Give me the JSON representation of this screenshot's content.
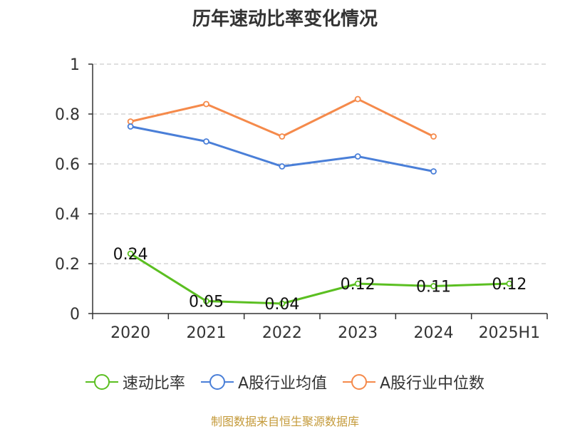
{
  "chart_data": {
    "type": "line",
    "title": "历年速动比率变化情况",
    "categories": [
      "2020",
      "2021",
      "2022",
      "2023",
      "2024",
      "2025H1"
    ],
    "ylim": [
      0,
      1
    ],
    "yticks": [
      0,
      0.2,
      0.4,
      0.6,
      0.8,
      1
    ],
    "ytick_labels": [
      "0",
      "0.2",
      "0.4",
      "0.6",
      "0.8",
      "1"
    ],
    "grid": true,
    "legend_position": "bottom",
    "series": [
      {
        "name": "速动比率",
        "color": "#5bbf21",
        "values": [
          0.24,
          0.05,
          0.04,
          0.12,
          0.11,
          0.12
        ],
        "labels": [
          "0.24",
          "0.05",
          "0.04",
          "0.12",
          "0.11",
          "0.12"
        ]
      },
      {
        "name": "A股行业均值",
        "color": "#4a7fd8",
        "values": [
          0.75,
          0.69,
          0.59,
          0.63,
          0.57,
          null
        ]
      },
      {
        "name": "A股行业中位数",
        "color": "#f58a4b",
        "values": [
          0.77,
          0.84,
          0.71,
          0.86,
          0.71,
          null
        ]
      }
    ]
  },
  "footer": {
    "source": "制图数据来自恒生聚源数据库"
  }
}
